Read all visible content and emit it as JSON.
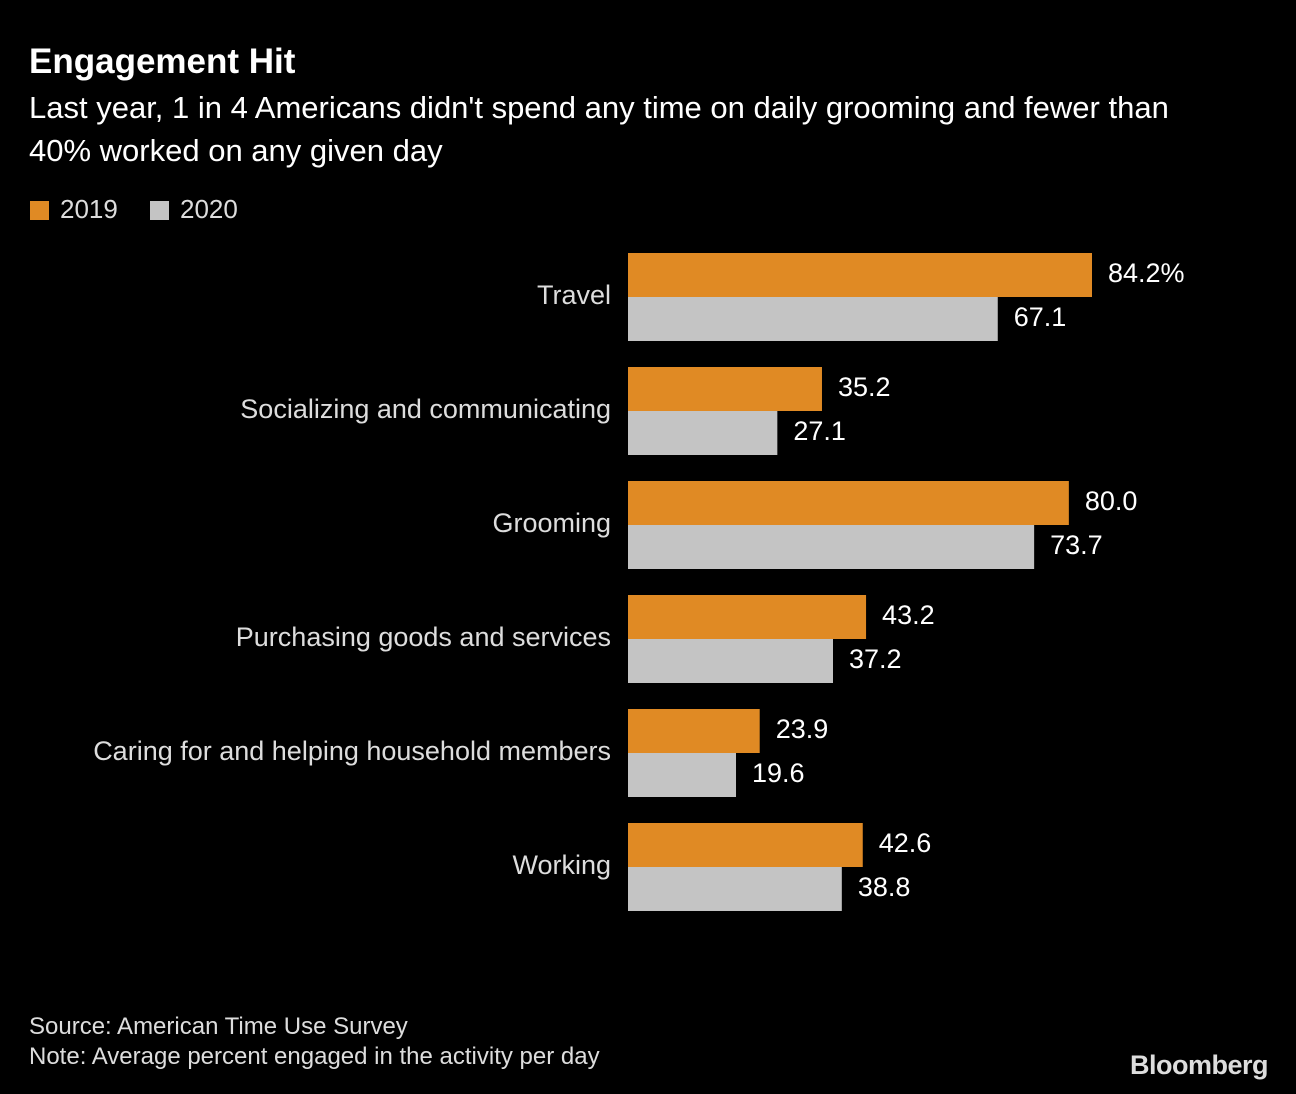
{
  "chart_data": {
    "type": "hbar",
    "title": "Engagement Hit",
    "subtitle": "Last year, 1 in 4 Americans didn't spend any time on daily grooming and fewer than 40% worked on any given day",
    "source": "Source: American Time Use Survey",
    "note": "Note: Average percent engaged in the activity per day",
    "logo": "Bloomberg",
    "categories": [
      "Travel",
      "Socializing and communicating",
      "Grooming",
      "Purchasing goods and services",
      "Caring for and helping household members",
      "Working"
    ],
    "series": [
      {
        "name": "2019",
        "color": "#e08a24",
        "values": [
          84.2,
          35.2,
          80.0,
          43.2,
          23.9,
          42.6
        ],
        "value_labels": [
          "84.2%",
          "35.2",
          "80.0",
          "43.2",
          "23.9",
          "42.6"
        ]
      },
      {
        "name": "2020",
        "color": "#c4c4c4",
        "values": [
          67.1,
          27.1,
          73.7,
          37.2,
          19.6,
          38.8
        ],
        "value_labels": [
          "67.1",
          "27.1",
          "73.7",
          "37.2",
          "19.6",
          "38.8"
        ]
      }
    ]
  }
}
